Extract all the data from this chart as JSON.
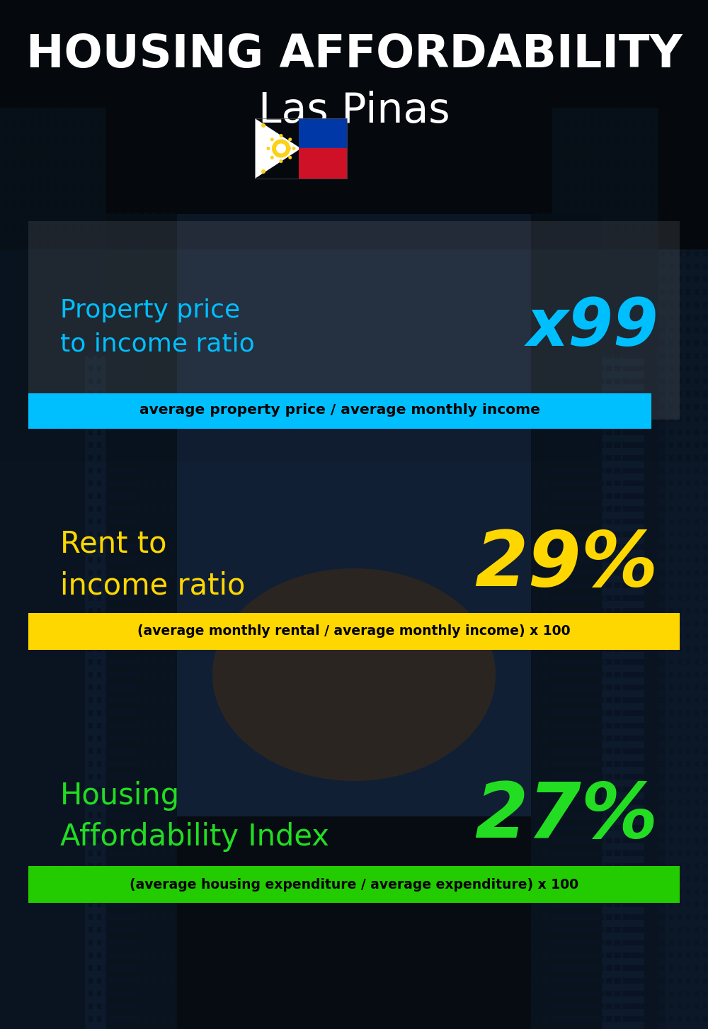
{
  "title_line1": "HOUSING AFFORDABILITY",
  "title_line2": "Las Pinas",
  "section1_label": "Property price\nto income ratio",
  "section1_value": "x99",
  "section1_label_color": "#00BFFF",
  "section1_value_color": "#00BFFF",
  "section1_banner": "average property price / average monthly income",
  "section1_banner_bg": "#00BFFF",
  "section2_label": "Rent to\nincome ratio",
  "section2_value": "29%",
  "section2_label_color": "#FFD700",
  "section2_value_color": "#FFD700",
  "section2_banner": "(average monthly rental / average monthly income) x 100",
  "section2_banner_bg": "#FFD700",
  "section3_label": "Housing\nAffordability Index",
  "section3_value": "27%",
  "section3_label_color": "#22DD22",
  "section3_value_color": "#22DD22",
  "section3_banner": "(average housing expenditure / average expenditure) x 100",
  "section3_banner_bg": "#22CC00",
  "bg_color": "#080d14",
  "title_color": "#FFFFFF",
  "subtitle_color": "#FFFFFF",
  "banner_text_color": "#000000"
}
